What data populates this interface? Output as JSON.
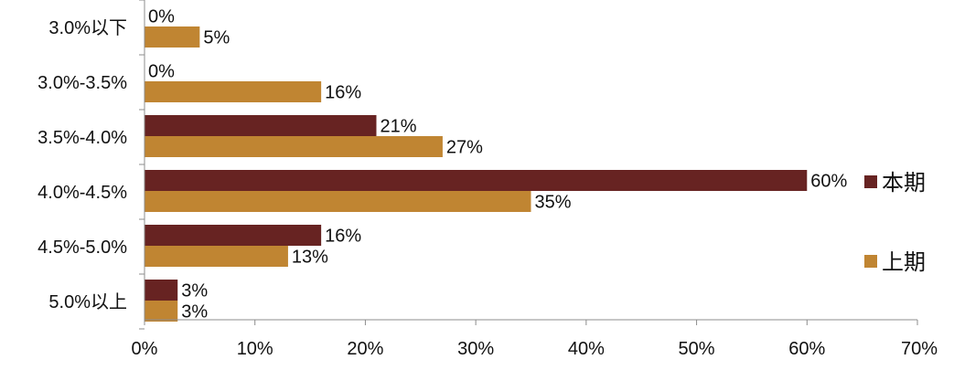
{
  "chart_data": {
    "type": "bar",
    "orientation": "horizontal",
    "categories": [
      "3.0%以下",
      "3.0%-3.5%",
      "3.5%-4.0%",
      "4.0%-4.5%",
      "4.5%-5.0%",
      "5.0%以上"
    ],
    "series": [
      {
        "name": "本期",
        "values": [
          0,
          0,
          21,
          60,
          16,
          3
        ],
        "labels": [
          "0%",
          "0%",
          "21%",
          "60%",
          "16%",
          "3%"
        ],
        "color": "#672322"
      },
      {
        "name": "上期",
        "values": [
          5,
          16,
          27,
          35,
          13,
          3
        ],
        "labels": [
          "5%",
          "16%",
          "27%",
          "35%",
          "13%",
          "3%"
        ],
        "color": "#C08532"
      }
    ],
    "x_ticks": [
      "0%",
      "10%",
      "20%",
      "30%",
      "40%",
      "50%",
      "60%",
      "70%"
    ],
    "xlim": [
      0,
      70
    ],
    "title": "",
    "xlabel": "",
    "ylabel": "",
    "grid": false,
    "legend_position": "right"
  }
}
